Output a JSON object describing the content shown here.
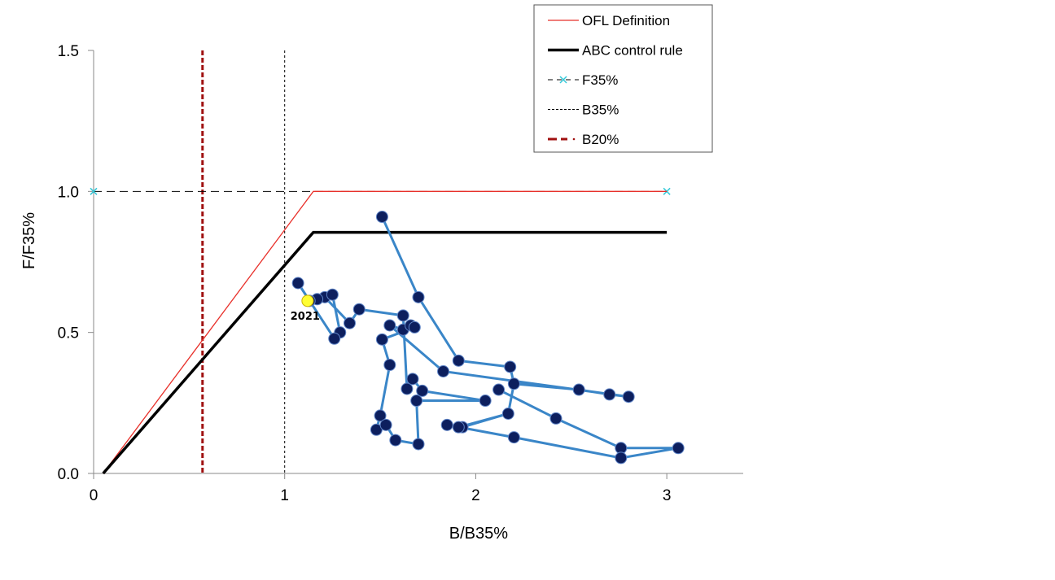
{
  "chart_data": {
    "type": "scatter",
    "xlabel": "B/B35%",
    "ylabel": "F/F35%",
    "xlim": [
      0,
      3.4
    ],
    "ylim": [
      0,
      1.5
    ],
    "x_ticks": [
      {
        "value": 0,
        "label": "0"
      },
      {
        "value": 1,
        "label": "1"
      },
      {
        "value": 2,
        "label": "2"
      },
      {
        "value": 3,
        "label": "3"
      }
    ],
    "y_ticks": [
      {
        "value": 0,
        "label": "0.0"
      },
      {
        "value": 0.5,
        "label": "0.5"
      },
      {
        "value": 1,
        "label": "1.0"
      },
      {
        "value": 1.5,
        "label": "1.5"
      }
    ],
    "grid": false,
    "legend_position": "top-right",
    "legend": [
      {
        "label": "OFL Definition",
        "style": "ofl"
      },
      {
        "label": "ABC control rule",
        "style": "abc"
      },
      {
        "label": "F35%",
        "style": "f35"
      },
      {
        "label": "B35%",
        "style": "b35"
      },
      {
        "label": "B20%",
        "style": "b20"
      }
    ],
    "reference_lines": {
      "ofl": {
        "x": [
          0.05,
          1.15,
          3.0
        ],
        "y": [
          0.0,
          1.0,
          1.0
        ]
      },
      "abc": {
        "x": [
          0.05,
          1.15,
          3.0
        ],
        "y": [
          0.0,
          0.855,
          0.855
        ]
      },
      "f35": {
        "x": [
          0,
          3.0
        ],
        "y": [
          1.0,
          1.0
        ]
      },
      "b35": {
        "x": 1.0
      },
      "b20": {
        "x": 0.57
      }
    },
    "trajectory": {
      "x": [
        1.51,
        1.7,
        1.91,
        2.18,
        2.2,
        2.54,
        2.7,
        2.8,
        1.83,
        1.55,
        1.62,
        1.66,
        1.68,
        1.51,
        1.55,
        1.5,
        1.48,
        1.53,
        1.58,
        1.7,
        1.69,
        2.05,
        1.72,
        1.67,
        1.64,
        1.62,
        1.39,
        1.34,
        1.21,
        1.17,
        1.25,
        1.29,
        1.26,
        1.07,
        1.13
      ],
      "y": [
        0.91,
        0.625,
        0.4,
        0.378,
        0.318,
        0.297,
        0.28,
        0.272,
        0.362,
        0.525,
        0.51,
        0.525,
        0.518,
        0.475,
        0.385,
        0.205,
        0.155,
        0.172,
        0.118,
        0.104,
        0.258,
        0.258,
        0.293,
        0.335,
        0.3,
        0.56,
        0.582,
        0.533,
        0.625,
        0.618,
        0.634,
        0.5,
        0.478,
        0.675,
        0.612
      ],
      "color": "#3a86c8",
      "marker_color": "#0d1f5e"
    },
    "extra_segments": [
      {
        "x": [
          2.12,
          2.42,
          2.76,
          3.06,
          2.76,
          2.2,
          1.85,
          1.93,
          2.17,
          2.2
        ],
        "y": [
          0.297,
          0.195,
          0.09,
          0.09,
          0.055,
          0.128,
          0.172,
          0.164,
          0.212,
          0.318
        ]
      },
      {
        "x": [
          2.17,
          1.91,
          1.85
        ],
        "y": [
          0.212,
          0.164,
          0.172
        ]
      }
    ],
    "highlight_point": {
      "x": 1.12,
      "y": 0.612,
      "label": "2021",
      "color": "#ffff33"
    }
  }
}
